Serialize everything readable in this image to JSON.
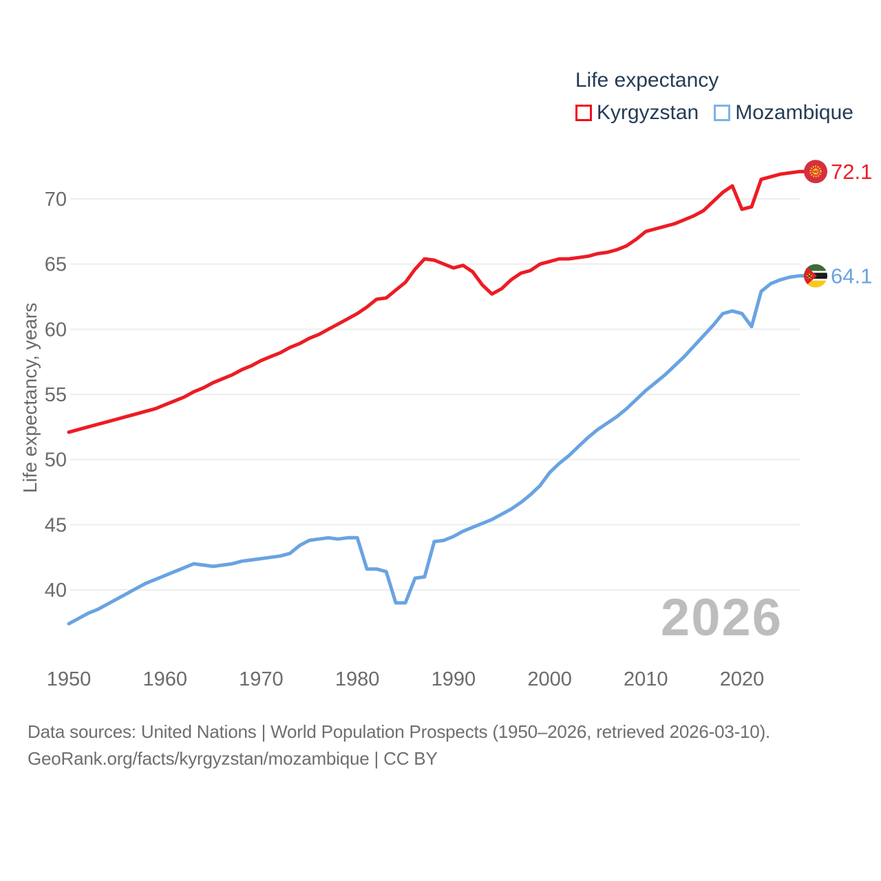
{
  "legend": {
    "title": "Life expectancy",
    "series": [
      {
        "label": "Kyrgyzstan"
      },
      {
        "label": "Mozambique"
      }
    ]
  },
  "watermark": "2026",
  "footer": {
    "line1": "Data sources: United Nations | World Population Prospects (1950–2026, retrieved 2026-03-10).",
    "line2": "GeoRank.org/facts/kyrgyzstan/mozambique | CC BY"
  },
  "colors": {
    "kyrgyzstan_line": "#ec1c24",
    "mozambique_line": "#69a3e2",
    "legend_swatch_red": "#f30b1c",
    "legend_swatch_blue": "#7cb2ea",
    "legend_text": "#243c56",
    "axis_text": "#6b6b6b",
    "gridline": "#ededed",
    "watermark": "#bdbdbd",
    "footer_text": "#6e6e6e",
    "kyrgyzstan_flag_red": "#d5303f",
    "flag_yellow": "#ffd11a",
    "mozambique_green": "#3d6b35",
    "mozambique_black": "#1a1a1a",
    "mozambique_yellow": "#f7c918",
    "mozambique_red": "#d8232a"
  },
  "chart_data": {
    "type": "line",
    "title": "Life expectancy",
    "xlabel": "",
    "ylabel": "Life expectancy, years",
    "grid": "horizontal",
    "legend_position": "top-right",
    "xlim": [
      1950,
      2026
    ],
    "ylim": [
      35,
      73.5
    ],
    "xticks": [
      1950,
      1960,
      1970,
      1980,
      1990,
      2000,
      2010,
      2020
    ],
    "yticks": [
      40,
      45,
      50,
      55,
      60,
      65,
      70
    ],
    "x": [
      1950,
      1951,
      1952,
      1953,
      1954,
      1955,
      1956,
      1957,
      1958,
      1959,
      1960,
      1961,
      1962,
      1963,
      1964,
      1965,
      1966,
      1967,
      1968,
      1969,
      1970,
      1971,
      1972,
      1973,
      1974,
      1975,
      1976,
      1977,
      1978,
      1979,
      1980,
      1981,
      1982,
      1983,
      1984,
      1985,
      1986,
      1987,
      1988,
      1989,
      1990,
      1991,
      1992,
      1993,
      1994,
      1995,
      1996,
      1997,
      1998,
      1999,
      2000,
      2001,
      2002,
      2003,
      2004,
      2005,
      2006,
      2007,
      2008,
      2009,
      2010,
      2011,
      2012,
      2013,
      2014,
      2015,
      2016,
      2017,
      2018,
      2019,
      2020,
      2021,
      2022,
      2023,
      2024,
      2025,
      2026
    ],
    "series": [
      {
        "name": "Kyrgyzstan",
        "color": "#ec1c24",
        "end_label": "72.1",
        "end_value": 72.1,
        "values": [
          52.1,
          52.3,
          52.5,
          52.7,
          52.9,
          53.1,
          53.3,
          53.5,
          53.7,
          53.9,
          54.2,
          54.5,
          54.8,
          55.2,
          55.5,
          55.9,
          56.2,
          56.5,
          56.9,
          57.2,
          57.6,
          57.9,
          58.2,
          58.6,
          58.9,
          59.3,
          59.6,
          60.0,
          60.4,
          60.8,
          61.2,
          61.7,
          62.3,
          62.4,
          63.0,
          63.6,
          64.6,
          65.4,
          65.3,
          65.0,
          64.7,
          64.9,
          64.4,
          63.4,
          62.7,
          63.1,
          63.8,
          64.3,
          64.5,
          65.0,
          65.2,
          65.4,
          65.4,
          65.5,
          65.6,
          65.8,
          65.9,
          66.1,
          66.4,
          66.9,
          67.5,
          67.7,
          67.9,
          68.1,
          68.4,
          68.7,
          69.1,
          69.8,
          70.5,
          71.0,
          69.2,
          69.4,
          71.5,
          71.7,
          71.9,
          72.0,
          72.1
        ]
      },
      {
        "name": "Mozambique",
        "color": "#69a3e2",
        "end_label": "64.1",
        "end_value": 64.1,
        "values": [
          37.4,
          37.8,
          38.2,
          38.5,
          38.9,
          39.3,
          39.7,
          40.1,
          40.5,
          40.8,
          41.1,
          41.4,
          41.7,
          42.0,
          41.9,
          41.8,
          41.9,
          42.0,
          42.2,
          42.3,
          42.4,
          42.5,
          42.6,
          42.8,
          43.4,
          43.8,
          43.9,
          44.0,
          43.9,
          44.0,
          44.0,
          41.6,
          41.6,
          41.4,
          39.0,
          39.0,
          40.9,
          41.0,
          43.7,
          43.8,
          44.1,
          44.5,
          44.8,
          45.1,
          45.4,
          45.8,
          46.2,
          46.7,
          47.3,
          48.0,
          49.0,
          49.7,
          50.3,
          51.0,
          51.7,
          52.3,
          52.8,
          53.3,
          53.9,
          54.6,
          55.3,
          55.9,
          56.5,
          57.2,
          57.9,
          58.7,
          59.5,
          60.3,
          61.2,
          61.4,
          61.2,
          60.2,
          62.9,
          63.5,
          63.8,
          64.0,
          64.1
        ]
      }
    ]
  }
}
